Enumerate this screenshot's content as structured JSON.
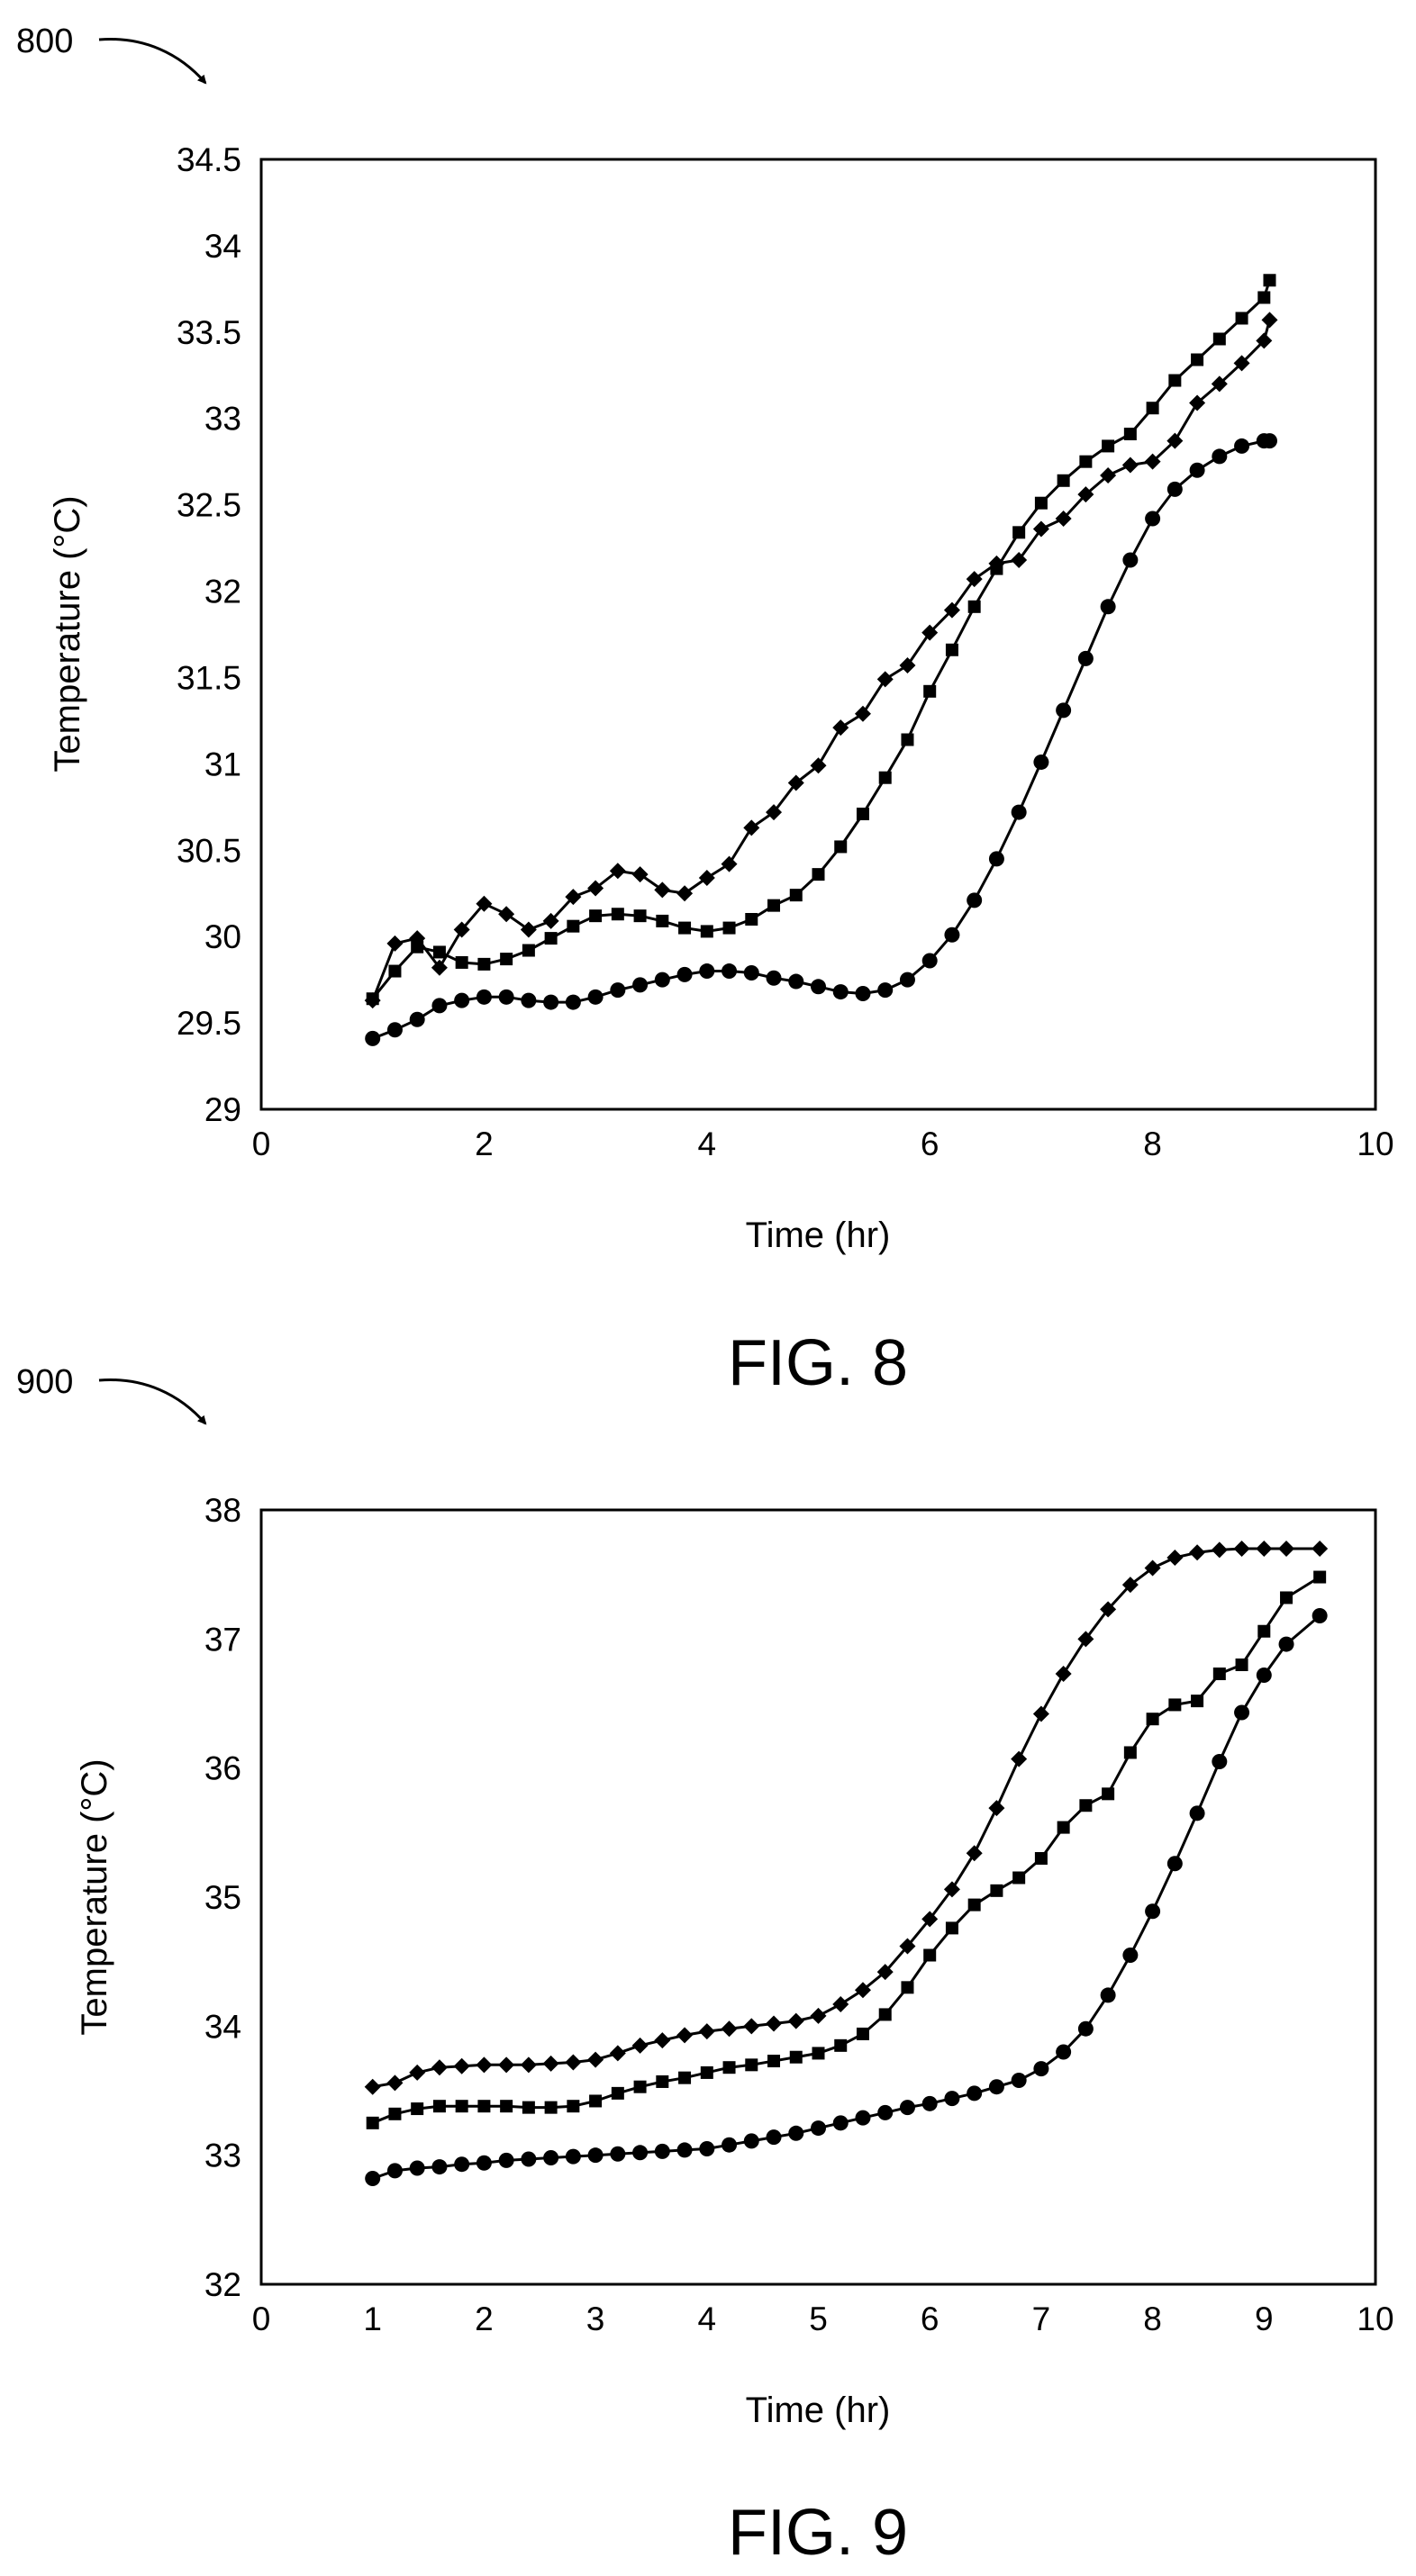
{
  "chart_data": [
    {
      "type": "line",
      "ref_numeral": "800",
      "caption": "FIG. 8",
      "xlabel": "Time (hr)",
      "ylabel": "Temperature (°C)",
      "xlim": [
        0,
        10
      ],
      "ylim": [
        29,
        34.5
      ],
      "xticks": [
        "0",
        "2",
        "4",
        "6",
        "8",
        "10"
      ],
      "yticks": [
        "29",
        "29.5",
        "30",
        "30.5",
        "31",
        "31.5",
        "32",
        "32.5",
        "33",
        "33.5",
        "34",
        "34.5"
      ],
      "grid": false,
      "legend": "none",
      "series": [
        {
          "marker": "diamond",
          "x": [
            1.0,
            1.2,
            1.4,
            1.6,
            1.8,
            2.0,
            2.2,
            2.4,
            2.6,
            2.8,
            3.0,
            3.2,
            3.4,
            3.6,
            3.8,
            4.0,
            4.2,
            4.4,
            4.6,
            4.8,
            5.0,
            5.2,
            5.4,
            5.6,
            5.8,
            6.0,
            6.2,
            6.4,
            6.6,
            6.8,
            7.0,
            7.2,
            7.4,
            7.6,
            7.8,
            8.0,
            8.2,
            8.4,
            8.6,
            8.8,
            9.0,
            9.05
          ],
          "y": [
            29.63,
            29.96,
            29.99,
            29.82,
            30.04,
            30.19,
            30.13,
            30.04,
            30.09,
            30.23,
            30.28,
            30.38,
            30.36,
            30.27,
            30.25,
            30.34,
            30.42,
            30.63,
            30.72,
            30.89,
            30.99,
            31.21,
            31.29,
            31.49,
            31.57,
            31.76,
            31.89,
            32.07,
            32.16,
            32.18,
            32.36,
            32.42,
            32.56,
            32.67,
            32.73,
            32.75,
            32.87,
            33.09,
            33.2,
            33.32,
            33.45,
            33.57
          ]
        },
        {
          "marker": "square",
          "x": [
            1.0,
            1.2,
            1.4,
            1.6,
            1.8,
            2.0,
            2.2,
            2.4,
            2.6,
            2.8,
            3.0,
            3.2,
            3.4,
            3.6,
            3.8,
            4.0,
            4.2,
            4.4,
            4.6,
            4.8,
            5.0,
            5.2,
            5.4,
            5.6,
            5.8,
            6.0,
            6.2,
            6.4,
            6.6,
            6.8,
            7.0,
            7.2,
            7.4,
            7.6,
            7.8,
            8.0,
            8.2,
            8.4,
            8.6,
            8.8,
            9.0,
            9.05
          ],
          "y": [
            29.64,
            29.8,
            29.94,
            29.91,
            29.85,
            29.84,
            29.87,
            29.92,
            29.99,
            30.06,
            30.12,
            30.13,
            30.12,
            30.09,
            30.05,
            30.03,
            30.05,
            30.1,
            30.18,
            30.24,
            30.36,
            30.52,
            30.71,
            30.92,
            31.14,
            31.42,
            31.66,
            31.91,
            32.13,
            32.34,
            32.51,
            32.64,
            32.75,
            32.84,
            32.91,
            33.06,
            33.22,
            33.34,
            33.46,
            33.58,
            33.7,
            33.8
          ]
        },
        {
          "marker": "circle",
          "x": [
            1.0,
            1.2,
            1.4,
            1.6,
            1.8,
            2.0,
            2.2,
            2.4,
            2.6,
            2.8,
            3.0,
            3.2,
            3.4,
            3.6,
            3.8,
            4.0,
            4.2,
            4.4,
            4.6,
            4.8,
            5.0,
            5.2,
            5.4,
            5.6,
            5.8,
            6.0,
            6.2,
            6.4,
            6.6,
            6.8,
            7.0,
            7.2,
            7.4,
            7.6,
            7.8,
            8.0,
            8.2,
            8.4,
            8.6,
            8.8,
            9.0,
            9.05
          ],
          "y": [
            29.41,
            29.46,
            29.52,
            29.6,
            29.63,
            29.65,
            29.65,
            29.63,
            29.62,
            29.62,
            29.65,
            29.69,
            29.72,
            29.75,
            29.78,
            29.8,
            29.8,
            29.79,
            29.76,
            29.74,
            29.71,
            29.68,
            29.67,
            29.69,
            29.75,
            29.86,
            30.01,
            30.21,
            30.45,
            30.72,
            31.01,
            31.31,
            31.61,
            31.91,
            32.18,
            32.42,
            32.59,
            32.7,
            32.78,
            32.84,
            32.87,
            32.87
          ]
        }
      ]
    },
    {
      "type": "line",
      "ref_numeral": "900",
      "caption": "FIG. 9",
      "xlabel": "Time (hr)",
      "ylabel": "Temperature (°C)",
      "xlim": [
        0,
        10
      ],
      "ylim": [
        32,
        38
      ],
      "xticks": [
        "0",
        "1",
        "2",
        "3",
        "4",
        "5",
        "6",
        "7",
        "8",
        "9",
        "10"
      ],
      "yticks": [
        "32",
        "33",
        "34",
        "35",
        "36",
        "37",
        "38"
      ],
      "grid": false,
      "legend": "none",
      "series": [
        {
          "marker": "diamond",
          "x": [
            1.0,
            1.2,
            1.4,
            1.6,
            1.8,
            2.0,
            2.2,
            2.4,
            2.6,
            2.8,
            3.0,
            3.2,
            3.4,
            3.6,
            3.8,
            4.0,
            4.2,
            4.4,
            4.6,
            4.8,
            5.0,
            5.2,
            5.4,
            5.6,
            5.8,
            6.0,
            6.2,
            6.4,
            6.6,
            6.8,
            7.0,
            7.2,
            7.4,
            7.6,
            7.8,
            8.0,
            8.2,
            8.4,
            8.6,
            8.8,
            9.0,
            9.2,
            9.5
          ],
          "y": [
            33.53,
            33.56,
            33.64,
            33.68,
            33.69,
            33.7,
            33.7,
            33.7,
            33.71,
            33.72,
            33.74,
            33.79,
            33.85,
            33.89,
            33.93,
            33.96,
            33.98,
            34.0,
            34.02,
            34.04,
            34.08,
            34.17,
            34.28,
            34.42,
            34.62,
            34.83,
            35.06,
            35.34,
            35.69,
            36.07,
            36.42,
            36.73,
            37.0,
            37.23,
            37.42,
            37.55,
            37.63,
            37.67,
            37.69,
            37.7,
            37.7,
            37.7,
            37.7
          ]
        },
        {
          "marker": "square",
          "x": [
            1.0,
            1.2,
            1.4,
            1.6,
            1.8,
            2.0,
            2.2,
            2.4,
            2.6,
            2.8,
            3.0,
            3.2,
            3.4,
            3.6,
            3.8,
            4.0,
            4.2,
            4.4,
            4.6,
            4.8,
            5.0,
            5.2,
            5.4,
            5.6,
            5.8,
            6.0,
            6.2,
            6.4,
            6.6,
            6.8,
            7.0,
            7.2,
            7.4,
            7.6,
            7.8,
            8.0,
            8.2,
            8.4,
            8.6,
            8.8,
            9.0,
            9.2,
            9.5
          ],
          "y": [
            33.25,
            33.32,
            33.36,
            33.38,
            33.38,
            33.38,
            33.38,
            33.37,
            33.37,
            33.38,
            33.42,
            33.48,
            33.53,
            33.57,
            33.6,
            33.64,
            33.68,
            33.7,
            33.73,
            33.76,
            33.79,
            33.85,
            33.94,
            34.09,
            34.3,
            34.55,
            34.76,
            34.94,
            35.05,
            35.15,
            35.3,
            35.54,
            35.71,
            35.8,
            36.12,
            36.38,
            36.49,
            36.52,
            36.73,
            36.8,
            37.06,
            37.32,
            37.48
          ]
        },
        {
          "marker": "circle",
          "x": [
            1.0,
            1.2,
            1.4,
            1.6,
            1.8,
            2.0,
            2.2,
            2.4,
            2.6,
            2.8,
            3.0,
            3.2,
            3.4,
            3.6,
            3.8,
            4.0,
            4.2,
            4.4,
            4.6,
            4.8,
            5.0,
            5.2,
            5.4,
            5.6,
            5.8,
            6.0,
            6.2,
            6.4,
            6.6,
            6.8,
            7.0,
            7.2,
            7.4,
            7.6,
            7.8,
            8.0,
            8.2,
            8.4,
            8.6,
            8.8,
            9.0,
            9.2,
            9.5
          ],
          "y": [
            32.82,
            32.88,
            32.9,
            32.91,
            32.93,
            32.94,
            32.96,
            32.97,
            32.98,
            32.99,
            33.0,
            33.01,
            33.02,
            33.03,
            33.04,
            33.05,
            33.08,
            33.11,
            33.14,
            33.17,
            33.21,
            33.25,
            33.29,
            33.33,
            33.37,
            33.4,
            33.44,
            33.48,
            33.53,
            33.58,
            33.67,
            33.8,
            33.98,
            34.24,
            34.55,
            34.89,
            35.26,
            35.65,
            36.05,
            36.43,
            36.72,
            36.96,
            37.18
          ]
        }
      ]
    }
  ]
}
